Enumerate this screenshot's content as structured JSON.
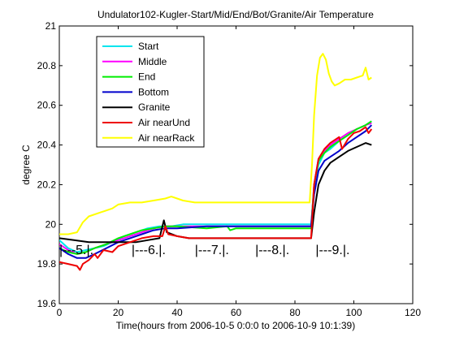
{
  "chart_data": {
    "type": "line",
    "title": "Undulator102-Kugler-Start/Mid/End/Bot/Granite/Air Temperature",
    "xlabel": "Time(hours from 2006-10-5 0:0:0 to 2006-10-9 10:1:39)",
    "ylabel": "degree C",
    "xlim": [
      0,
      120
    ],
    "ylim": [
      19.6,
      21
    ],
    "xticks": [
      0,
      20,
      40,
      60,
      80,
      100,
      120
    ],
    "yticks": [
      19.6,
      19.8,
      20,
      20.2,
      20.4,
      20.6,
      20.8,
      21
    ],
    "grid": false,
    "legend_position": "top-left",
    "annotations": [
      {
        "text": "|---5.|.",
        "x": 0,
        "y": 19.87
      },
      {
        "text": "|---6.|.",
        "x": 24.5,
        "y": 19.87
      },
      {
        "text": "|---7.|.",
        "x": 46,
        "y": 19.87
      },
      {
        "text": "|---8.|.",
        "x": 66.5,
        "y": 19.87
      },
      {
        "text": "|---9.|.",
        "x": 87,
        "y": 19.87
      }
    ],
    "series": [
      {
        "name": "Start",
        "color": "#00e5ee",
        "points": [
          [
            0,
            19.92
          ],
          [
            3,
            19.88
          ],
          [
            6,
            19.86
          ],
          [
            9,
            19.87
          ],
          [
            12,
            19.88
          ],
          [
            15,
            19.89
          ],
          [
            18,
            19.91
          ],
          [
            22,
            19.94
          ],
          [
            26,
            19.96
          ],
          [
            30,
            19.98
          ],
          [
            34,
            19.99
          ],
          [
            38,
            19.99
          ],
          [
            42,
            20.0
          ],
          [
            50,
            20.0
          ],
          [
            60,
            20.0
          ],
          [
            70,
            20.0
          ],
          [
            80,
            20.0
          ],
          [
            85.5,
            20.0
          ],
          [
            86.5,
            20.18
          ],
          [
            88,
            20.3
          ],
          [
            90,
            20.36
          ],
          [
            92,
            20.38
          ],
          [
            95,
            20.42
          ],
          [
            98,
            20.45
          ],
          [
            101,
            20.48
          ],
          [
            104,
            20.5
          ],
          [
            106,
            20.52
          ]
        ]
      },
      {
        "name": "Middle",
        "color": "#ff00ff",
        "points": [
          [
            0,
            19.9
          ],
          [
            3,
            19.87
          ],
          [
            6,
            19.85
          ],
          [
            9,
            19.86
          ],
          [
            12,
            19.88
          ],
          [
            16,
            19.9
          ],
          [
            20,
            19.92
          ],
          [
            24,
            19.94
          ],
          [
            28,
            19.96
          ],
          [
            32,
            19.98
          ],
          [
            36,
            19.99
          ],
          [
            40,
            19.99
          ],
          [
            50,
            19.99
          ],
          [
            60,
            19.99
          ],
          [
            70,
            19.99
          ],
          [
            80,
            19.99
          ],
          [
            85.5,
            19.99
          ],
          [
            86.5,
            20.2
          ],
          [
            88,
            20.33
          ],
          [
            90,
            20.37
          ],
          [
            92,
            20.4
          ],
          [
            95,
            20.43
          ],
          [
            98,
            20.46
          ],
          [
            101,
            20.48
          ],
          [
            104,
            20.5
          ],
          [
            106,
            20.51
          ]
        ]
      },
      {
        "name": "End",
        "color": "#00ee00",
        "points": [
          [
            0,
            19.88
          ],
          [
            3,
            19.86
          ],
          [
            6,
            19.85
          ],
          [
            9,
            19.86
          ],
          [
            12,
            19.88
          ],
          [
            16,
            19.9
          ],
          [
            20,
            19.93
          ],
          [
            24,
            19.95
          ],
          [
            28,
            19.97
          ],
          [
            32,
            19.98
          ],
          [
            36,
            19.99
          ],
          [
            40,
            19.99
          ],
          [
            50,
            19.98
          ],
          [
            57,
            19.99
          ],
          [
            58,
            19.97
          ],
          [
            60,
            19.98
          ],
          [
            70,
            19.98
          ],
          [
            80,
            19.98
          ],
          [
            85.5,
            19.98
          ],
          [
            86.5,
            20.2
          ],
          [
            88,
            20.32
          ],
          [
            90,
            20.36
          ],
          [
            92,
            20.39
          ],
          [
            95,
            20.42
          ],
          [
            98,
            20.45
          ],
          [
            101,
            20.48
          ],
          [
            104,
            20.5
          ],
          [
            106,
            20.52
          ]
        ]
      },
      {
        "name": "Bottom",
        "color": "#0000cc",
        "points": [
          [
            0,
            19.88
          ],
          [
            3,
            19.85
          ],
          [
            6,
            19.83
          ],
          [
            9,
            19.83
          ],
          [
            12,
            19.85
          ],
          [
            16,
            19.88
          ],
          [
            20,
            19.91
          ],
          [
            24,
            19.93
          ],
          [
            28,
            19.95
          ],
          [
            32,
            19.97
          ],
          [
            36,
            19.98
          ],
          [
            40,
            19.98
          ],
          [
            50,
            19.99
          ],
          [
            60,
            19.99
          ],
          [
            70,
            19.99
          ],
          [
            80,
            19.99
          ],
          [
            85.5,
            19.99
          ],
          [
            86.5,
            20.15
          ],
          [
            88,
            20.27
          ],
          [
            90,
            20.32
          ],
          [
            92,
            20.34
          ],
          [
            95,
            20.37
          ],
          [
            98,
            20.41
          ],
          [
            101,
            20.44
          ],
          [
            104,
            20.47
          ],
          [
            106,
            20.5
          ]
        ]
      },
      {
        "name": "Granite",
        "color": "#000000",
        "points": [
          [
            0,
            19.93
          ],
          [
            5,
            19.92
          ],
          [
            10,
            19.91
          ],
          [
            14,
            19.91
          ],
          [
            18,
            19.91
          ],
          [
            22,
            19.91
          ],
          [
            26,
            19.91
          ],
          [
            30,
            19.92
          ],
          [
            34,
            19.93
          ],
          [
            35.5,
            20.02
          ],
          [
            36.5,
            19.96
          ],
          [
            40,
            19.94
          ],
          [
            44,
            19.93
          ],
          [
            50,
            19.93
          ],
          [
            60,
            19.93
          ],
          [
            70,
            19.93
          ],
          [
            80,
            19.93
          ],
          [
            85.5,
            19.93
          ],
          [
            86.5,
            20.06
          ],
          [
            88,
            20.2
          ],
          [
            90,
            20.27
          ],
          [
            92,
            20.31
          ],
          [
            95,
            20.34
          ],
          [
            98,
            20.37
          ],
          [
            101,
            20.39
          ],
          [
            104,
            20.41
          ],
          [
            106,
            20.4
          ]
        ]
      },
      {
        "name": "Air nearUnd",
        "color": "#ee0000",
        "points": [
          [
            0,
            19.81
          ],
          [
            3,
            19.8
          ],
          [
            6,
            19.79
          ],
          [
            7,
            19.77
          ],
          [
            8,
            19.8
          ],
          [
            10,
            19.82
          ],
          [
            12,
            19.85
          ],
          [
            13,
            19.83
          ],
          [
            15,
            19.87
          ],
          [
            18,
            19.86
          ],
          [
            20,
            19.89
          ],
          [
            24,
            19.91
          ],
          [
            28,
            19.93
          ],
          [
            32,
            19.94
          ],
          [
            35,
            19.94
          ],
          [
            36,
            19.99
          ],
          [
            37,
            19.95
          ],
          [
            40,
            19.94
          ],
          [
            44,
            19.93
          ],
          [
            50,
            19.93
          ],
          [
            60,
            19.93
          ],
          [
            70,
            19.93
          ],
          [
            80,
            19.93
          ],
          [
            85.5,
            19.93
          ],
          [
            86.5,
            20.2
          ],
          [
            88,
            20.33
          ],
          [
            90,
            20.38
          ],
          [
            92,
            20.41
          ],
          [
            95,
            20.44
          ],
          [
            96,
            20.38
          ],
          [
            98,
            20.43
          ],
          [
            100,
            20.46
          ],
          [
            102,
            20.47
          ],
          [
            104,
            20.49
          ],
          [
            105,
            20.46
          ],
          [
            106,
            20.48
          ]
        ]
      },
      {
        "name": "Air nearRack",
        "color": "#ffff00",
        "points": [
          [
            0,
            19.95
          ],
          [
            3,
            19.95
          ],
          [
            6,
            19.96
          ],
          [
            8,
            20.01
          ],
          [
            10,
            20.04
          ],
          [
            14,
            20.06
          ],
          [
            18,
            20.08
          ],
          [
            20,
            20.1
          ],
          [
            24,
            20.11
          ],
          [
            28,
            20.11
          ],
          [
            32,
            20.12
          ],
          [
            36,
            20.13
          ],
          [
            38,
            20.14
          ],
          [
            40,
            20.13
          ],
          [
            42,
            20.12
          ],
          [
            46,
            20.11
          ],
          [
            50,
            20.11
          ],
          [
            60,
            20.11
          ],
          [
            70,
            20.11
          ],
          [
            80,
            20.11
          ],
          [
            85,
            20.11
          ],
          [
            85.8,
            20.3
          ],
          [
            86.5,
            20.55
          ],
          [
            87.5,
            20.75
          ],
          [
            88.5,
            20.84
          ],
          [
            89.5,
            20.86
          ],
          [
            90.5,
            20.83
          ],
          [
            91.5,
            20.76
          ],
          [
            92.5,
            20.72
          ],
          [
            93.5,
            20.7
          ],
          [
            95,
            20.71
          ],
          [
            97,
            20.73
          ],
          [
            99,
            20.73
          ],
          [
            101,
            20.74
          ],
          [
            103,
            20.75
          ],
          [
            104,
            20.79
          ],
          [
            105,
            20.73
          ],
          [
            106,
            20.74
          ]
        ]
      }
    ]
  }
}
